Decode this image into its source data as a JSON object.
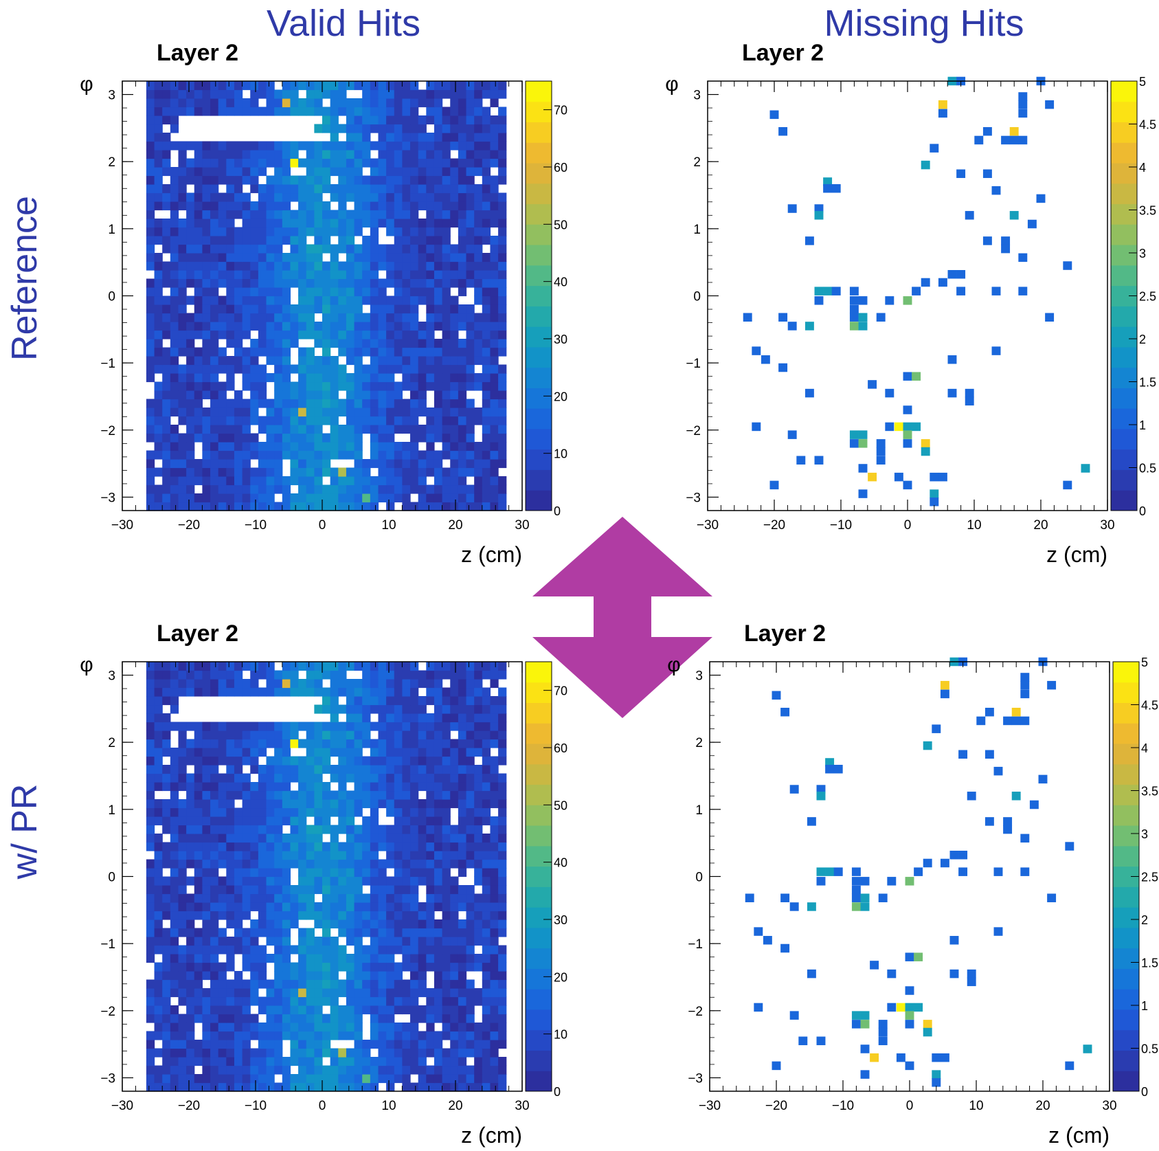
{
  "column_titles": {
    "valid": "Valid Hits",
    "missing": "Missing Hits"
  },
  "row_titles": {
    "top": "Reference",
    "bottom": "w/ PR"
  },
  "colors": {
    "heading": "#2f3aa8",
    "arrow": "#b03ca3"
  },
  "palette": [
    "#2c2f9e",
    "#2a3cb0",
    "#2549c6",
    "#1f58d6",
    "#1a67db",
    "#1676d9",
    "#1485d2",
    "#1293c8",
    "#169fbb",
    "#23a9ab",
    "#37b29a",
    "#52b987",
    "#72be72",
    "#92bf5f",
    "#b0bd4f",
    "#c9b843",
    "#deb43a",
    "#eeba30",
    "#f7cd22",
    "#fbe214",
    "#faf50a"
  ],
  "chart_data": [
    {
      "type": "heatmap",
      "panel": "top-left",
      "title": "Layer 2",
      "xlabel": "z (cm)",
      "ylabel": "φ",
      "xlim": [
        -30,
        30
      ],
      "ylim": [
        -3.2,
        3.2
      ],
      "xticks": [
        "−30",
        "−20",
        "−10",
        "0",
        "10",
        "20",
        "30"
      ],
      "yticks": [
        "−3",
        "−2",
        "−1",
        "0",
        "1",
        "2",
        "3"
      ],
      "colorbar": {
        "min": 0,
        "max": 75,
        "ticks": [
          "0",
          "10",
          "20",
          "30",
          "40",
          "50",
          "60",
          "70"
        ]
      },
      "bin_count": [
        50,
        50
      ],
      "typical_bin_value": 8,
      "hotspots": [
        {
          "z": -3.8,
          "phi": 1.95,
          "value": 75
        },
        {
          "z": -5,
          "phi": 2.85,
          "value": 58
        },
        {
          "z": 2.5,
          "phi": -2.6,
          "value": 52
        },
        {
          "z": -3.5,
          "phi": -1.7,
          "value": 55
        },
        {
          "z": 6.5,
          "phi": -3.05,
          "value": 40
        }
      ]
    },
    {
      "type": "heatmap",
      "panel": "top-right",
      "title": "Layer 2",
      "xlabel": "z (cm)",
      "ylabel": "φ",
      "xlim": [
        -30,
        30
      ],
      "ylim": [
        -3.2,
        3.2
      ],
      "xticks": [
        "−30",
        "−20",
        "−10",
        "0",
        "10",
        "20",
        "30"
      ],
      "yticks": [
        "−3",
        "−2",
        "−1",
        "0",
        "1",
        "2",
        "3"
      ],
      "colorbar": {
        "min": 0,
        "max": 5,
        "ticks": [
          "0",
          "0.5",
          "1",
          "1.5",
          "2",
          "2.5",
          "3",
          "3.5",
          "4",
          "4.5",
          "5"
        ]
      },
      "points": [
        {
          "z": -20,
          "phi": 2.7,
          "v": 1
        },
        {
          "z": -18.7,
          "phi": 2.45,
          "v": 1
        },
        {
          "z": -12,
          "phi": 1.7,
          "v": 2
        },
        {
          "z": -12,
          "phi": 1.6,
          "v": 1
        },
        {
          "z": -10.7,
          "phi": 1.6,
          "v": 1
        },
        {
          "z": -17.3,
          "phi": 1.3,
          "v": 1
        },
        {
          "z": -13.3,
          "phi": 1.3,
          "v": 1
        },
        {
          "z": -13.3,
          "phi": 1.2,
          "v": 2
        },
        {
          "z": -14.7,
          "phi": 0.82,
          "v": 1
        },
        {
          "z": -13.3,
          "phi": 0.07,
          "v": 2
        },
        {
          "z": -12,
          "phi": 0.07,
          "v": 2
        },
        {
          "z": -10.7,
          "phi": 0.07,
          "v": 1
        },
        {
          "z": -13.3,
          "phi": -0.07,
          "v": 1
        },
        {
          "z": -8,
          "phi": 0.07,
          "v": 1
        },
        {
          "z": -8,
          "phi": -0.07,
          "v": 1
        },
        {
          "z": -6.7,
          "phi": -0.07,
          "v": 1
        },
        {
          "z": -2.7,
          "phi": -0.07,
          "v": 1
        },
        {
          "z": 0,
          "phi": -0.07,
          "v": 3
        },
        {
          "z": 1.3,
          "phi": 0.07,
          "v": 1
        },
        {
          "z": 2.7,
          "phi": 0.2,
          "v": 1
        },
        {
          "z": 5.3,
          "phi": 0.2,
          "v": 1
        },
        {
          "z": 6.7,
          "phi": 0.32,
          "v": 1
        },
        {
          "z": 8,
          "phi": 0.32,
          "v": 1
        },
        {
          "z": 8,
          "phi": 0.07,
          "v": 1
        },
        {
          "z": 13.3,
          "phi": 0.07,
          "v": 1
        },
        {
          "z": 17.3,
          "phi": 0.07,
          "v": 1
        },
        {
          "z": 21.3,
          "phi": -0.32,
          "v": 1
        },
        {
          "z": 24,
          "phi": 0.45,
          "v": 1
        },
        {
          "z": -24,
          "phi": -0.32,
          "v": 1
        },
        {
          "z": -18.7,
          "phi": -0.32,
          "v": 1
        },
        {
          "z": -17.3,
          "phi": -0.45,
          "v": 1
        },
        {
          "z": -14.7,
          "phi": -0.45,
          "v": 2
        },
        {
          "z": -8,
          "phi": -0.2,
          "v": 1
        },
        {
          "z": -8,
          "phi": -0.32,
          "v": 1
        },
        {
          "z": -6.7,
          "phi": -0.32,
          "v": 2
        },
        {
          "z": -8,
          "phi": -0.45,
          "v": 3
        },
        {
          "z": -6.7,
          "phi": -0.45,
          "v": 2
        },
        {
          "z": -4,
          "phi": -0.32,
          "v": 1
        },
        {
          "z": -22.7,
          "phi": -0.82,
          "v": 1
        },
        {
          "z": -21.3,
          "phi": -0.95,
          "v": 1
        },
        {
          "z": -18.7,
          "phi": -1.07,
          "v": 1
        },
        {
          "z": 6.7,
          "phi": -0.95,
          "v": 1
        },
        {
          "z": 13.3,
          "phi": -0.82,
          "v": 1
        },
        {
          "z": 0,
          "phi": -1.2,
          "v": 1
        },
        {
          "z": 1.3,
          "phi": -1.2,
          "v": 3
        },
        {
          "z": -5.3,
          "phi": -1.32,
          "v": 1
        },
        {
          "z": -14.7,
          "phi": -1.45,
          "v": 1
        },
        {
          "z": -2.7,
          "phi": -1.45,
          "v": 1
        },
        {
          "z": 6.7,
          "phi": -1.45,
          "v": 1
        },
        {
          "z": 9.3,
          "phi": -1.45,
          "v": 1
        },
        {
          "z": 9.3,
          "phi": -1.57,
          "v": 1
        },
        {
          "z": 0,
          "phi": -1.7,
          "v": 1
        },
        {
          "z": -22.7,
          "phi": -1.95,
          "v": 1
        },
        {
          "z": -2.7,
          "phi": -1.95,
          "v": 1
        },
        {
          "z": -1.3,
          "phi": -1.95,
          "v": 5
        },
        {
          "z": 0,
          "phi": -1.95,
          "v": 2
        },
        {
          "z": 1.3,
          "phi": -1.95,
          "v": 2
        },
        {
          "z": 0,
          "phi": -2.07,
          "v": 3
        },
        {
          "z": -17.3,
          "phi": -2.07,
          "v": 1
        },
        {
          "z": -6.7,
          "phi": -2.07,
          "v": 2
        },
        {
          "z": -8,
          "phi": -2.07,
          "v": 2
        },
        {
          "z": -8,
          "phi": -2.2,
          "v": 1
        },
        {
          "z": -6.7,
          "phi": -2.2,
          "v": 3
        },
        {
          "z": -4,
          "phi": -2.2,
          "v": 1
        },
        {
          "z": 0,
          "phi": -2.2,
          "v": 1
        },
        {
          "z": 2.7,
          "phi": -2.2,
          "v": 4.5
        },
        {
          "z": 2.7,
          "phi": -2.32,
          "v": 2
        },
        {
          "z": -4,
          "phi": -2.32,
          "v": 1
        },
        {
          "z": -4,
          "phi": -2.45,
          "v": 1
        },
        {
          "z": -16,
          "phi": -2.45,
          "v": 1
        },
        {
          "z": -13.3,
          "phi": -2.45,
          "v": 1
        },
        {
          "z": -6.7,
          "phi": -2.57,
          "v": 1
        },
        {
          "z": -5.3,
          "phi": -2.7,
          "v": 4.5
        },
        {
          "z": -1.3,
          "phi": -2.7,
          "v": 1
        },
        {
          "z": 4,
          "phi": -2.7,
          "v": 1
        },
        {
          "z": 5.3,
          "phi": -2.7,
          "v": 1
        },
        {
          "z": 0,
          "phi": -2.82,
          "v": 1
        },
        {
          "z": -20,
          "phi": -2.82,
          "v": 1
        },
        {
          "z": -6.7,
          "phi": -2.95,
          "v": 1
        },
        {
          "z": 4,
          "phi": -2.95,
          "v": 2
        },
        {
          "z": 4,
          "phi": -3.07,
          "v": 1
        },
        {
          "z": 24,
          "phi": -2.82,
          "v": 1
        },
        {
          "z": 26.7,
          "phi": -2.57,
          "v": 2
        },
        {
          "z": 6.7,
          "phi": 3.2,
          "v": 2
        },
        {
          "z": 8,
          "phi": 3.2,
          "v": 1
        },
        {
          "z": 20,
          "phi": 3.2,
          "v": 1
        },
        {
          "z": 5.3,
          "phi": 2.85,
          "v": 4.5
        },
        {
          "z": 5.3,
          "phi": 2.72,
          "v": 1
        },
        {
          "z": 17.3,
          "phi": 2.97,
          "v": 1
        },
        {
          "z": 17.3,
          "phi": 2.85,
          "v": 1
        },
        {
          "z": 17.3,
          "phi": 2.72,
          "v": 1
        },
        {
          "z": 21.3,
          "phi": 2.85,
          "v": 1
        },
        {
          "z": 12,
          "phi": 2.45,
          "v": 1
        },
        {
          "z": 10.7,
          "phi": 2.32,
          "v": 1
        },
        {
          "z": 14.7,
          "phi": 2.32,
          "v": 1
        },
        {
          "z": 16,
          "phi": 2.45,
          "v": 4.5
        },
        {
          "z": 16,
          "phi": 2.32,
          "v": 1
        },
        {
          "z": 17.3,
          "phi": 2.32,
          "v": 1
        },
        {
          "z": 4,
          "phi": 2.2,
          "v": 1
        },
        {
          "z": 2.7,
          "phi": 1.95,
          "v": 2
        },
        {
          "z": 8,
          "phi": 1.82,
          "v": 1
        },
        {
          "z": 12,
          "phi": 1.82,
          "v": 1
        },
        {
          "z": 13.3,
          "phi": 1.57,
          "v": 1
        },
        {
          "z": 20,
          "phi": 1.45,
          "v": 1
        },
        {
          "z": 9.3,
          "phi": 1.2,
          "v": 1
        },
        {
          "z": 16,
          "phi": 1.2,
          "v": 2
        },
        {
          "z": 18.7,
          "phi": 1.07,
          "v": 1
        },
        {
          "z": 12,
          "phi": 0.82,
          "v": 1
        },
        {
          "z": 14.7,
          "phi": 0.82,
          "v": 1
        },
        {
          "z": 14.7,
          "phi": 0.7,
          "v": 1
        },
        {
          "z": 17.3,
          "phi": 0.57,
          "v": 1
        }
      ]
    },
    {
      "type": "heatmap",
      "panel": "bottom-left",
      "title": "Layer 2",
      "xlabel": "z (cm)",
      "ylabel": "φ",
      "xlim": [
        -30,
        30
      ],
      "ylim": [
        -3.2,
        3.2
      ],
      "xticks": [
        "−30",
        "−20",
        "−10",
        "0",
        "10",
        "20",
        "30"
      ],
      "yticks": [
        "−3",
        "−2",
        "−1",
        "0",
        "1",
        "2",
        "3"
      ],
      "colorbar": {
        "min": 0,
        "max": 75,
        "ticks": [
          "0",
          "10",
          "20",
          "30",
          "40",
          "50",
          "60",
          "70"
        ]
      },
      "same_as": "top-left"
    },
    {
      "type": "heatmap",
      "panel": "bottom-right",
      "title": "Layer 2",
      "xlabel": "z (cm)",
      "ylabel": "φ",
      "xlim": [
        -30,
        30
      ],
      "ylim": [
        -3.2,
        3.2
      ],
      "xticks": [
        "−30",
        "−20",
        "−10",
        "0",
        "10",
        "20",
        "30"
      ],
      "yticks": [
        "−3",
        "−2",
        "−1",
        "0",
        "1",
        "2",
        "3"
      ],
      "colorbar": {
        "min": 0,
        "max": 5,
        "ticks": [
          "0",
          "0.5",
          "1",
          "1.5",
          "2",
          "2.5",
          "3",
          "3.5",
          "4",
          "4.5",
          "5"
        ]
      },
      "same_as": "top-right"
    }
  ]
}
